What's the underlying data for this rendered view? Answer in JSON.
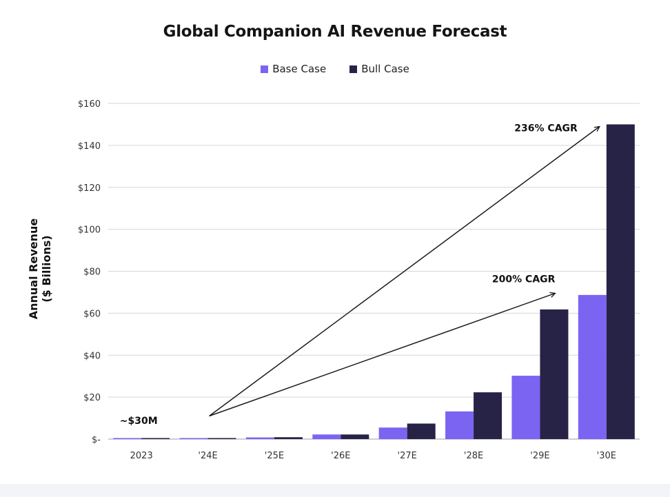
{
  "chart_data": {
    "type": "bar",
    "title": "Global Companion AI Revenue Forecast",
    "ylabel_lines": [
      "Annual Revenue",
      "($ Billions)"
    ],
    "categories": [
      "2023",
      "'24E",
      "'25E",
      "'26E",
      "'27E",
      "'28E",
      "'29E",
      "'30E"
    ],
    "series": [
      {
        "name": "Base Case",
        "color": "#7b64f2",
        "values": [
          0.03,
          0.2,
          0.8,
          2.2,
          5.5,
          13.2,
          30.2,
          68.7
        ]
      },
      {
        "name": "Bull Case",
        "color": "#262347",
        "values": [
          0.03,
          0.25,
          0.9,
          2.2,
          7.4,
          22.3,
          61.8,
          150
        ]
      }
    ],
    "ylim": [
      0,
      160
    ],
    "yticks": [
      0,
      20,
      40,
      60,
      80,
      100,
      120,
      140,
      160
    ],
    "ytick_labels": [
      "$-",
      "$20",
      "$40",
      "$60",
      "$80",
      "$100",
      "$120",
      "$140",
      "$160"
    ],
    "grid": true,
    "legend_position": "top-center",
    "annotations": [
      {
        "text": "~$30M",
        "category": "2023",
        "y": 4
      },
      {
        "text": "236% CAGR",
        "from_category": "'24E",
        "from_y": 11,
        "to_category": "'30E",
        "to_series": "Bull Case",
        "to_y": 149
      },
      {
        "text": "200% CAGR",
        "from_category": "'24E",
        "from_y": 11,
        "to_category": "'29E",
        "to_y": 69.5
      }
    ]
  }
}
